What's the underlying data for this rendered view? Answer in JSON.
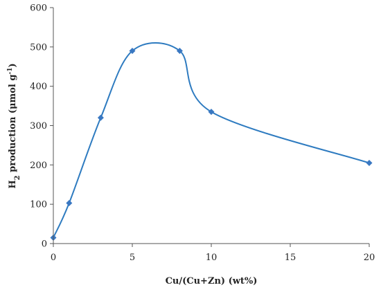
{
  "chart_data": {
    "type": "scatter",
    "xlabel": "Cu/(Cu+Zn) (wt%)",
    "ylabel": {
      "pre": "H",
      "sub": "2",
      "mid": " production (μmol g",
      "sup": "-1",
      "post": ")"
    },
    "xlim": [
      0,
      20
    ],
    "ylim": [
      0,
      600
    ],
    "xticks": [
      0,
      5,
      10,
      15,
      20
    ],
    "yticks": [
      0,
      100,
      200,
      300,
      400,
      500,
      600
    ],
    "grid": false,
    "legend": "none",
    "series": [
      {
        "color": "#2e7bc0",
        "marker": "diamond",
        "line": "smoothed",
        "x": [
          0,
          1,
          3,
          5,
          8,
          10,
          20
        ],
        "y": [
          15,
          103,
          320,
          490,
          490,
          335,
          205
        ]
      }
    ]
  }
}
